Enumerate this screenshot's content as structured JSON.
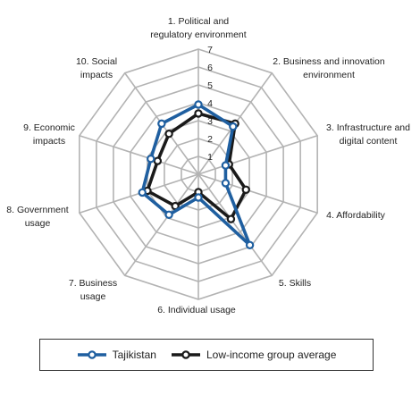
{
  "chart_data": {
    "type": "radar",
    "axes": [
      [
        "1. Political and",
        "regulatory environment"
      ],
      [
        "2. Business and innovation",
        "environment"
      ],
      [
        "3. Infrastructure and",
        "digital content"
      ],
      [
        "4. Affordability"
      ],
      [
        "5. Skills"
      ],
      [
        "6. Individual usage"
      ],
      [
        "7. Business",
        "usage"
      ],
      [
        "8. Government",
        "usage"
      ],
      [
        "9. Economic",
        "impacts"
      ],
      [
        "10. Social",
        "impacts"
      ]
    ],
    "ticks": [
      "1",
      "2",
      "3",
      "4",
      "5",
      "6",
      "7"
    ],
    "range": [
      0,
      7
    ],
    "series": [
      {
        "name": "Tajikistan",
        "color": "#1f5fa0",
        "values": [
          3.9,
          3.3,
          1.6,
          1.6,
          4.9,
          1.3,
          2.8,
          3.3,
          2.8,
          3.5
        ]
      },
      {
        "name": "Low-income group average",
        "color": "#1a1a1a",
        "values": [
          3.4,
          3.5,
          1.8,
          2.8,
          3.1,
          1.0,
          2.2,
          3.0,
          2.4,
          2.8
        ]
      }
    ]
  }
}
